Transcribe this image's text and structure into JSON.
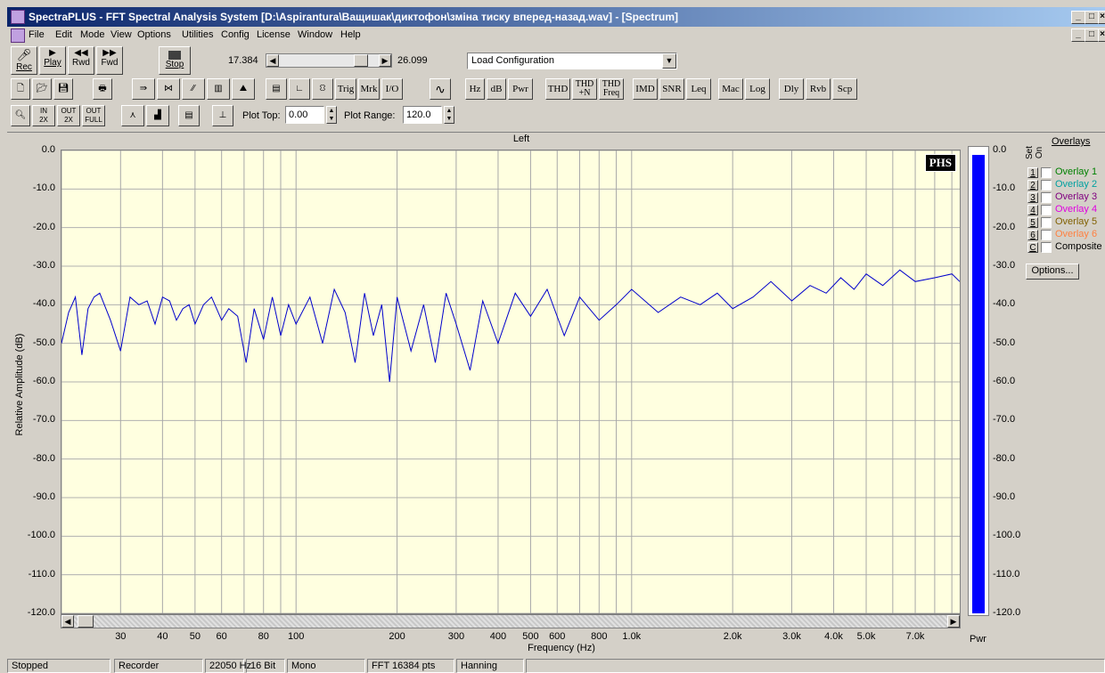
{
  "window": {
    "title": "SpectraPLUS - FFT Spectral Analysis System [D:\\Aspirantura\\Ващишак\\диктофон\\зміна тиску вперед-назад.wav] - [Spectrum]"
  },
  "menu": [
    "File",
    "Edit",
    "Mode",
    "View",
    "Options",
    "Utilities",
    "Config",
    "License",
    "Window",
    "Help"
  ],
  "transport": {
    "rec": "Rec",
    "play": "Play",
    "rwd": "Rwd",
    "fwd": "Fwd",
    "stop": "Stop",
    "start_time": "17.384",
    "end_time": "26.099",
    "position_fraction": 0.88
  },
  "config_dropdown": {
    "value": "Load Configuration"
  },
  "toolbar2": {
    "trig": "Trig",
    "mrk": "Mrk",
    "io": "I/O",
    "hz": "Hz",
    "db": "dB",
    "pwr": "Pwr",
    "thd": "THD",
    "thdn_top": "THD",
    "thdn_bot": "+N",
    "thdf_top": "THD",
    "thdf_bot": "Freq",
    "imd": "IMD",
    "snr": "SNR",
    "leq": "Leq",
    "mac": "Mac",
    "log": "Log",
    "dly": "Dly",
    "rvb": "Rvb",
    "scp": "Scp"
  },
  "toolbar3": {
    "zin_top": "IN",
    "zin_bot": "2X",
    "zout_top": "OUT",
    "zout_bot": "2X",
    "zfull_top": "OUT",
    "zfull_bot": "FULL",
    "plot_top_label": "Plot Top:",
    "plot_top_value": "0.00",
    "plot_range_label": "Plot Range:",
    "plot_range_value": "120.0"
  },
  "chart_data": {
    "type": "line",
    "title": "Left",
    "xlabel": "Frequency (Hz)",
    "ylabel": "Relative Amplitude (dB)",
    "xscale": "log",
    "xlim": [
      20,
      9500
    ],
    "ylim": [
      -120,
      0
    ],
    "ytick_labels": [
      "0.0",
      "-10.0",
      "-20.0",
      "-30.0",
      "-40.0",
      "-50.0",
      "-60.0",
      "-70.0",
      "-80.0",
      "-90.0",
      "-100.0",
      "-110.0",
      "-120.0"
    ],
    "xtick_labels": [
      "30",
      "40",
      "50",
      "60",
      "80",
      "100",
      "200",
      "300",
      "400",
      "500",
      "600",
      "800",
      "1.0k",
      "2.0k",
      "3.0k",
      "4.0k",
      "5.0k",
      "7.0k"
    ],
    "xtick_values": [
      30,
      40,
      50,
      60,
      80,
      100,
      200,
      300,
      400,
      500,
      600,
      800,
      1000,
      2000,
      3000,
      4000,
      5000,
      7000
    ],
    "grid": true,
    "series_color": "#0000cc",
    "series": [
      {
        "x": [
          20,
          21,
          22,
          23,
          24,
          25,
          26,
          28,
          30,
          32,
          34,
          36,
          38,
          40,
          42,
          44,
          46,
          48,
          50,
          53,
          56,
          60,
          63,
          67,
          71,
          75,
          80,
          85,
          90,
          95,
          100,
          110,
          120,
          130,
          140,
          150,
          160,
          170,
          180,
          190,
          200,
          220,
          240,
          260,
          280,
          300,
          330,
          360,
          400,
          450,
          500,
          560,
          630,
          700,
          800,
          900,
          1000,
          1200,
          1400,
          1600,
          1800,
          2000,
          2300,
          2600,
          3000,
          3400,
          3800,
          4200,
          4600,
          5000,
          5600,
          6300,
          7000,
          8000,
          9000,
          9500
        ],
        "y": [
          -50,
          -42,
          -38,
          -53,
          -41,
          -38,
          -37,
          -44,
          -52,
          -38,
          -40,
          -39,
          -45,
          -38,
          -39,
          -44,
          -41,
          -40,
          -45,
          -40,
          -38,
          -44,
          -41,
          -43,
          -55,
          -41,
          -49,
          -38,
          -48,
          -40,
          -45,
          -38,
          -50,
          -36,
          -42,
          -55,
          -37,
          -48,
          -40,
          -60,
          -38,
          -52,
          -40,
          -55,
          -37,
          -45,
          -57,
          -39,
          -50,
          -37,
          -43,
          -36,
          -48,
          -38,
          -44,
          -40,
          -36,
          -42,
          -38,
          -40,
          -37,
          -41,
          -38,
          -34,
          -39,
          -35,
          -37,
          -33,
          -36,
          -32,
          -35,
          -31,
          -34,
          -33,
          -32,
          -34
        ]
      }
    ]
  },
  "pwr_meter": {
    "label": "Pwr",
    "level_db": -1.5,
    "color": "#0000ff"
  },
  "overlays": {
    "title": "Overlays",
    "col_set": "Set",
    "col_on": "On",
    "items": [
      {
        "num": "1",
        "label": "Overlay 1",
        "color": "#008000"
      },
      {
        "num": "2",
        "label": "Overlay 2",
        "color": "#00a0a0"
      },
      {
        "num": "3",
        "label": "Overlay 3",
        "color": "#800080"
      },
      {
        "num": "4",
        "label": "Overlay 4",
        "color": "#e000e0"
      },
      {
        "num": "5",
        "label": "Overlay 5",
        "color": "#806000"
      },
      {
        "num": "6",
        "label": "Overlay 6",
        "color": "#ff8040"
      },
      {
        "num": "C",
        "label": "Composite",
        "color": "#000000"
      }
    ],
    "options_button": "Options..."
  },
  "status": [
    "Stopped",
    "Recorder",
    "22050 Hz",
    "16 Bit",
    "Mono",
    "FFT 16384 pts",
    "Hanning"
  ]
}
